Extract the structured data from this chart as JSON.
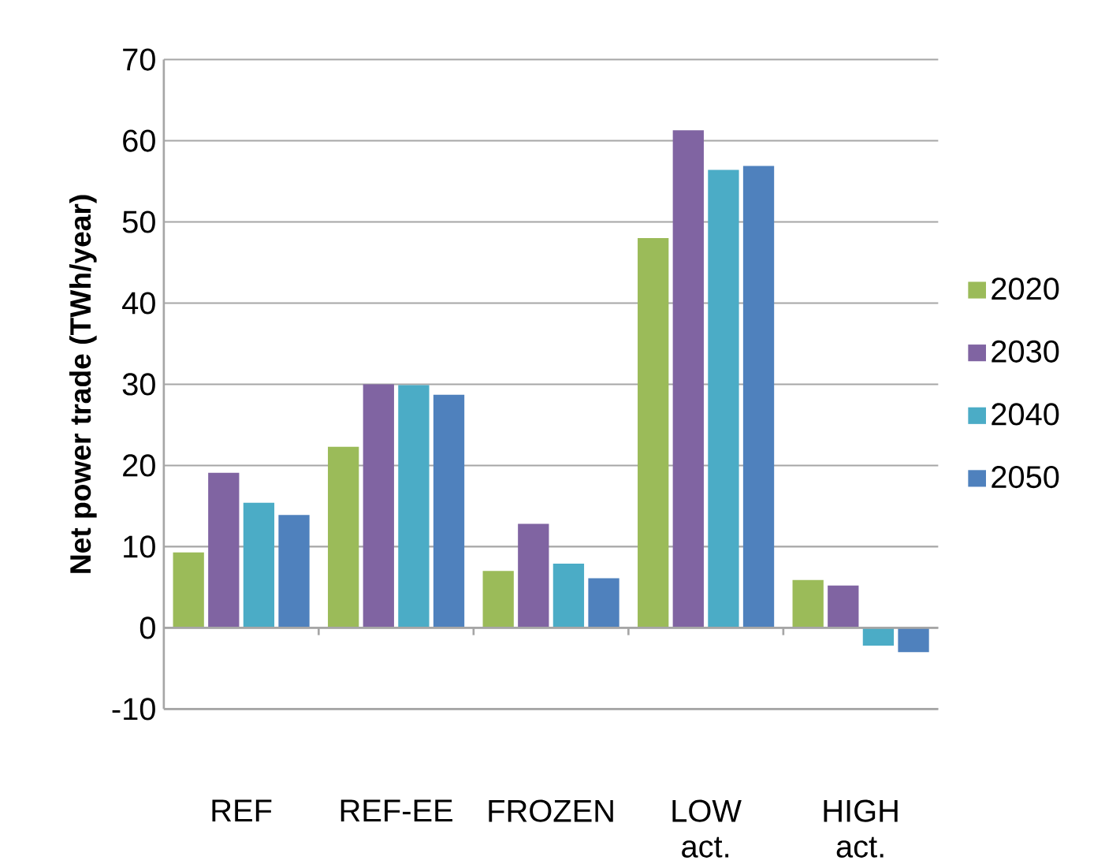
{
  "chart_data": {
    "type": "bar",
    "ylabel": "Net power trade (TWh/year)",
    "categories": [
      "REF",
      "REF-EE",
      "FROZEN",
      "LOW act.",
      "HIGH act."
    ],
    "series": [
      {
        "name": "2020",
        "color": "#9bbb59",
        "values": [
          9.3,
          22.3,
          7.0,
          48.0,
          5.9
        ]
      },
      {
        "name": "2030",
        "color": "#8064a2",
        "values": [
          19.1,
          30.0,
          12.8,
          61.3,
          5.2
        ]
      },
      {
        "name": "2040",
        "color": "#4bacc6",
        "values": [
          15.4,
          29.9,
          7.9,
          56.4,
          -2.2
        ]
      },
      {
        "name": "2050",
        "color": "#4f81bd",
        "values": [
          13.9,
          28.7,
          6.1,
          56.9,
          -3.0
        ]
      }
    ],
    "ylim": [
      -10,
      70
    ],
    "yticks": [
      -10,
      0,
      10,
      20,
      30,
      40,
      50,
      60,
      70
    ],
    "grid": "y",
    "legend": "right"
  }
}
